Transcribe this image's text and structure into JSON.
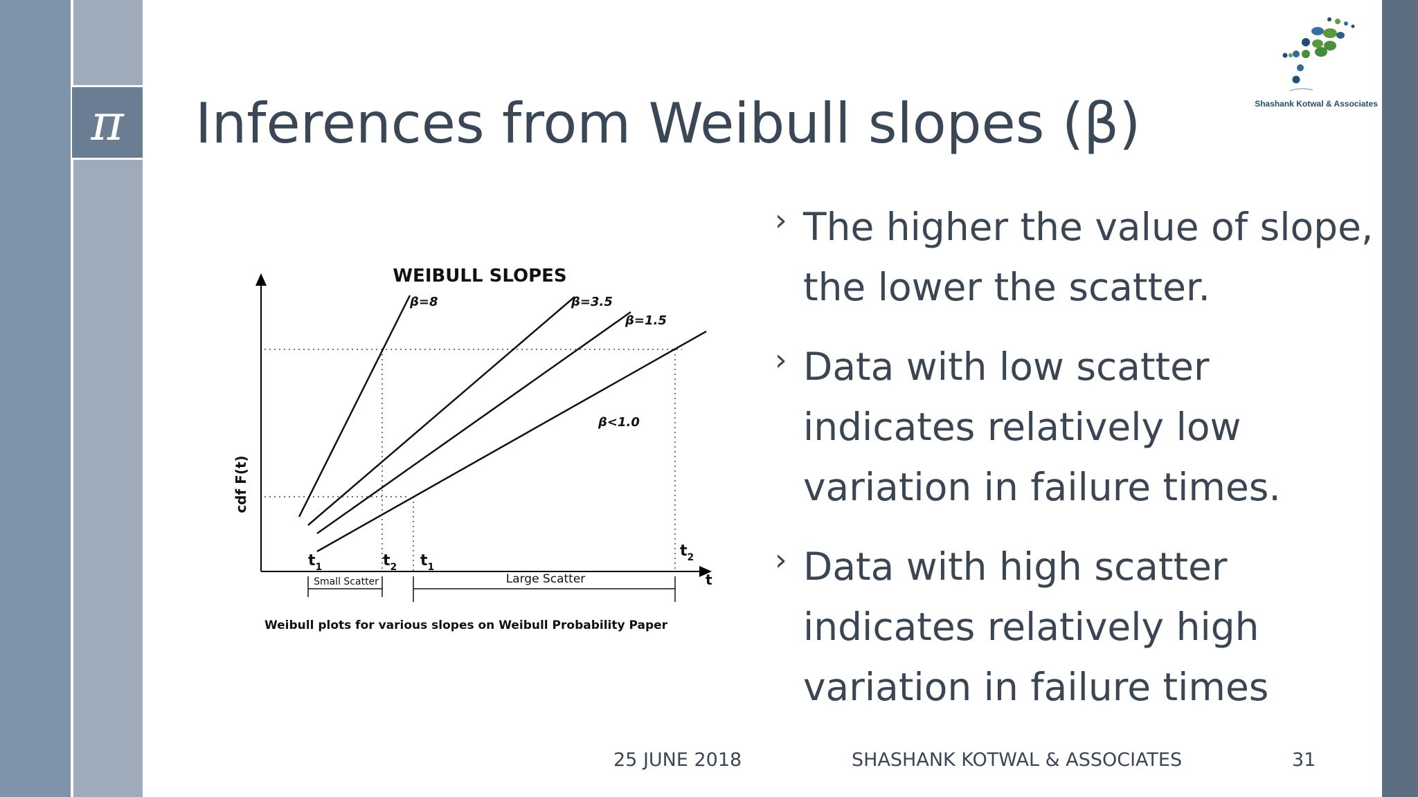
{
  "slide": {
    "title": "Inferences from Weibull slopes (β)",
    "pi_symbol": "π",
    "logo_text": "Shashank Kotwal & Associates"
  },
  "chart_data": {
    "type": "line",
    "title": "WEIBULL SLOPES",
    "ylabel": "cdf F(t)",
    "xlabel": "t",
    "caption": "Weibull plots for various slopes on Weibull Probability Paper",
    "series": [
      {
        "name": "β=8"
      },
      {
        "name": "β=3.5"
      },
      {
        "name": "β=1.5"
      },
      {
        "name": "β<1.0"
      }
    ],
    "annotations": {
      "t1_small": "t",
      "t1_small_sub": "1",
      "t2_small": "t",
      "t2_small_sub": "2",
      "t1_large": "t",
      "t1_large_sub": "1",
      "t2_large": "t",
      "t2_large_sub": "2",
      "small_scatter": "Small Scatter",
      "large_scatter": "Large Scatter"
    }
  },
  "bullets": [
    "The higher the value of slope, the lower the scatter.",
    "Data with low scatter indicates relatively low variation in failure times.",
    "Data with high scatter indicates relatively high variation in failure times"
  ],
  "bullet_mark": "›",
  "footer": {
    "date": "25 JUNE 2018",
    "company": "SHASHANK KOTWAL & ASSOCIATES",
    "page": "31"
  }
}
